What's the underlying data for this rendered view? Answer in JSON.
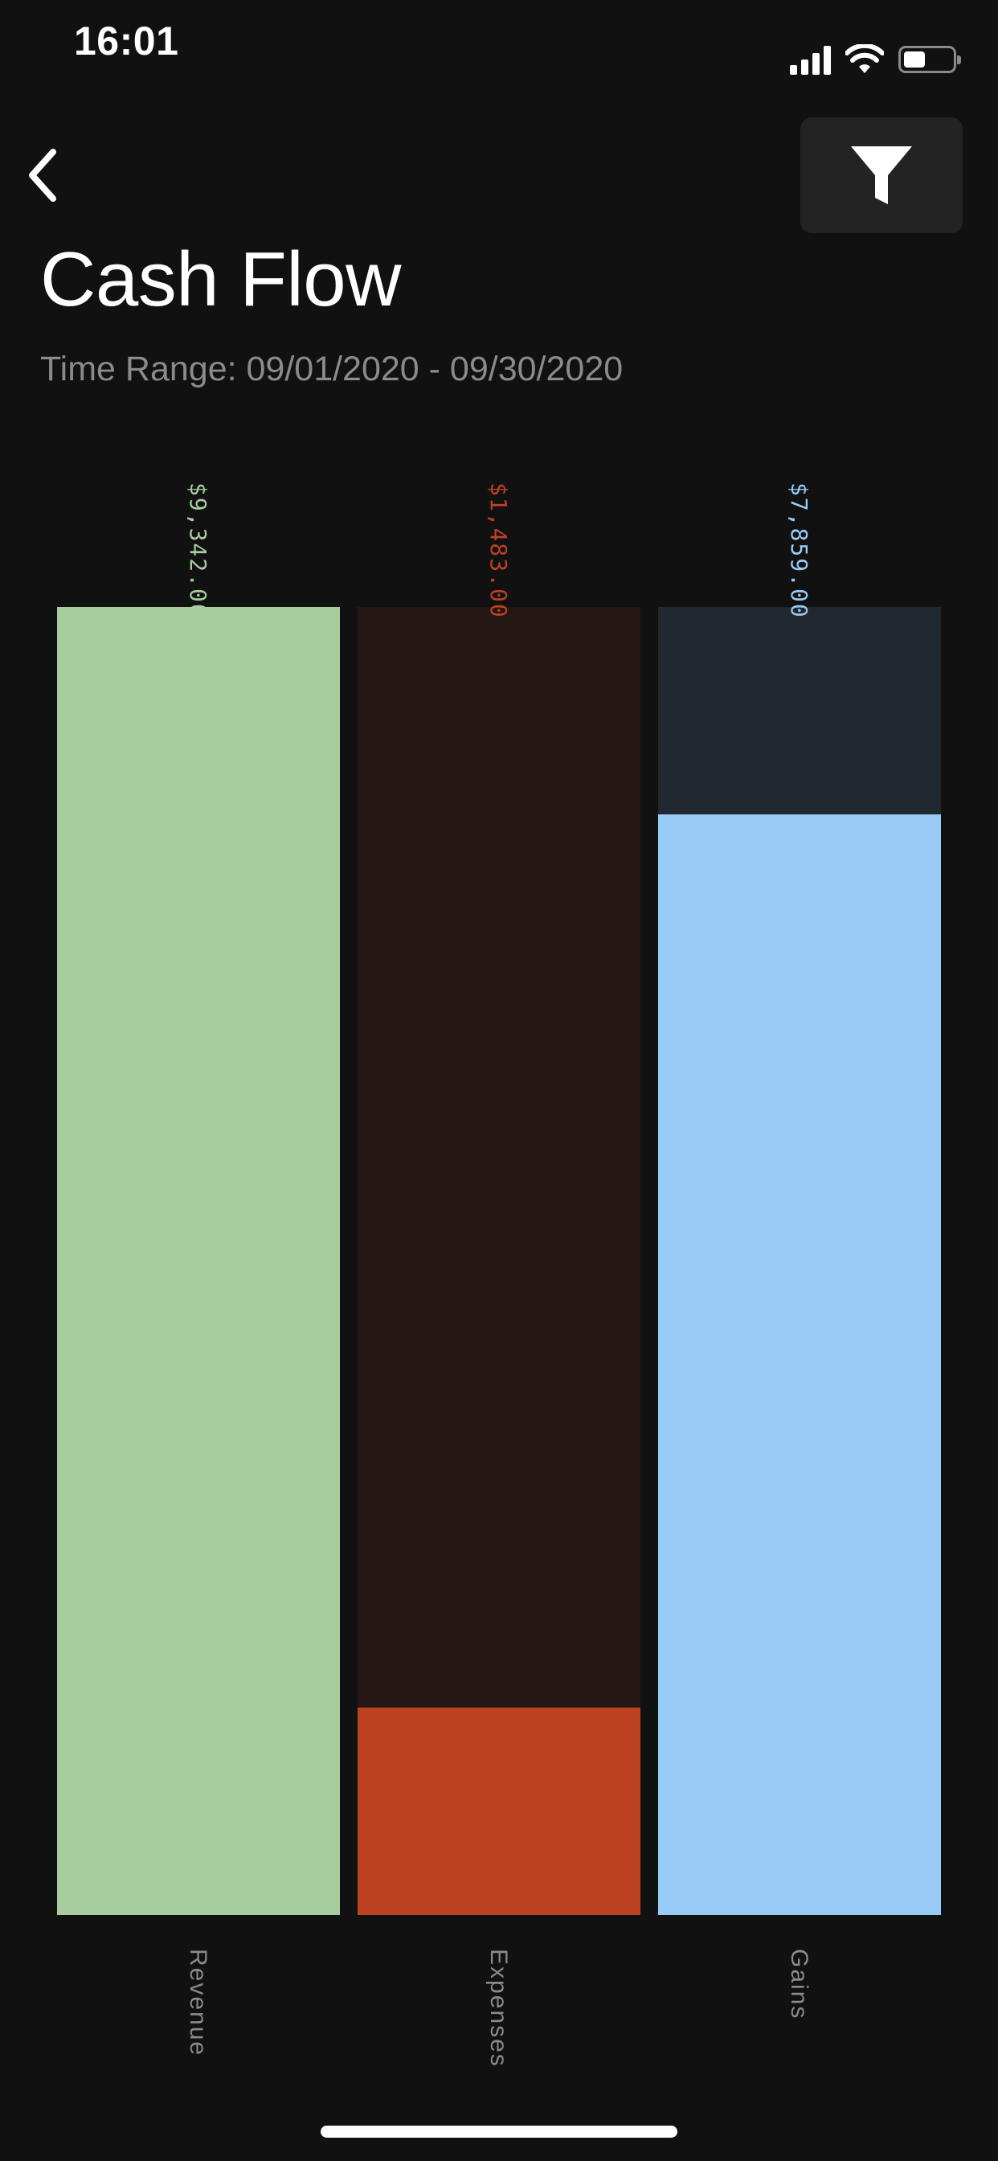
{
  "status_bar": {
    "time": "16:01",
    "battery_level": 0.45,
    "signal_bars": 4
  },
  "nav": {
    "back_icon": "chevron-left-icon",
    "filter_icon": "filter-funnel-icon"
  },
  "header": {
    "title": "Cash Flow",
    "time_range": "Time Range: 09/01/2020 - 09/30/2020"
  },
  "colors": {
    "background": "#111112",
    "revenue": "#a7cd9f",
    "expenses": "#bd4221",
    "gains": "#98cbf5",
    "expenses_track": "#251713",
    "gains_track": "#212830",
    "label_gray": "#8b8b8d"
  },
  "chart_data": {
    "type": "bar",
    "orientation": "vertical",
    "categories": [
      "Revenue",
      "Expenses",
      "Gains"
    ],
    "values": [
      9342.0,
      1483.0,
      7859.0
    ],
    "value_labels": [
      "$9,342.00",
      "$1,483.00",
      "$7,859.00"
    ],
    "colors": [
      "#a7cd9f",
      "#bd4221",
      "#98cbf5"
    ],
    "track_colors": [
      "#a7cd9f",
      "#251713",
      "#212830"
    ],
    "ylim": [
      0,
      9342
    ],
    "grid": false,
    "title": "",
    "xlabel": "",
    "ylabel": ""
  }
}
